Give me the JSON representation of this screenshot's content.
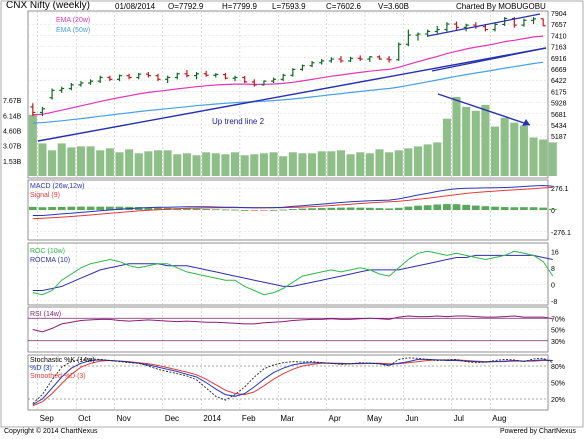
{
  "header": {
    "title": "CNX Nifty (weekly)",
    "date": "01/08/2014",
    "open": "O=7792.9",
    "high": "H=7799.9",
    "low": "L=7593.9",
    "close": "C=7602.6",
    "volume": "V=3.60B",
    "charted_by": "Charted By MOBUGOBU"
  },
  "footer": {
    "copyright": "Copyright © 2014 ChartNexus",
    "powered": "Powered by ChartNexus"
  },
  "colors": {
    "up": "#0f6b1f",
    "down": "#c41a1a",
    "ema20": "#e535b8",
    "ema50": "#4aa0e6",
    "trend": "#2530b0",
    "vol": "#8fbf88",
    "macd": "#2537b8",
    "signal": "#e23a3a",
    "roc": "#2fb84a",
    "rocma": "#2b2fb0",
    "rsi": "#8a1d7a",
    "band": "#7a1d6a"
  },
  "chart_data": [
    {
      "type": "candlestick",
      "name": "price",
      "legend": [
        "EMA (20w)",
        "EMA (50w)"
      ],
      "annotation": "Up trend line 2",
      "y_ticks": [
        "7904",
        "7657",
        "7410",
        "7163",
        "6916",
        "6669",
        "6422",
        "6175",
        "5928",
        "5681",
        "5434",
        "5187"
      ],
      "ylim": [
        5000,
        8000
      ],
      "x_tick_labels": [
        "Sep",
        "Oct",
        "Nov",
        "Dec",
        "2014",
        "Feb",
        "Mar",
        "Apr",
        "May",
        "Jun",
        "Jul",
        "Aug"
      ],
      "candles": [
        {
          "o": 5400,
          "h": 5500,
          "l": 5150,
          "c": 5250
        },
        {
          "o": 5250,
          "h": 5400,
          "l": 5150,
          "c": 5350
        },
        {
          "o": 5650,
          "h": 5900,
          "l": 5600,
          "c": 5850
        },
        {
          "o": 5850,
          "h": 5950,
          "l": 5780,
          "c": 5900
        },
        {
          "o": 5900,
          "h": 6050,
          "l": 5850,
          "c": 6000
        },
        {
          "o": 6000,
          "h": 6100,
          "l": 5950,
          "c": 6050
        },
        {
          "o": 6050,
          "h": 6150,
          "l": 6000,
          "c": 6100
        },
        {
          "o": 6100,
          "h": 6250,
          "l": 6050,
          "c": 6200
        },
        {
          "o": 6200,
          "h": 6250,
          "l": 6100,
          "c": 6150
        },
        {
          "o": 6150,
          "h": 6280,
          "l": 6100,
          "c": 6250
        },
        {
          "o": 6250,
          "h": 6300,
          "l": 6150,
          "c": 6200
        },
        {
          "o": 6200,
          "h": 6320,
          "l": 6150,
          "c": 6290
        },
        {
          "o": 6290,
          "h": 6350,
          "l": 6200,
          "c": 6250
        },
        {
          "o": 6250,
          "h": 6300,
          "l": 6100,
          "c": 6150
        },
        {
          "o": 6150,
          "h": 6250,
          "l": 6050,
          "c": 6200
        },
        {
          "o": 6200,
          "h": 6330,
          "l": 6150,
          "c": 6300
        },
        {
          "o": 6300,
          "h": 6400,
          "l": 6200,
          "c": 6250
        },
        {
          "o": 6250,
          "h": 6350,
          "l": 6150,
          "c": 6300
        },
        {
          "o": 6300,
          "h": 6380,
          "l": 6220,
          "c": 6260
        },
        {
          "o": 6260,
          "h": 6320,
          "l": 6200,
          "c": 6280
        },
        {
          "o": 6280,
          "h": 6320,
          "l": 6150,
          "c": 6180
        },
        {
          "o": 6180,
          "h": 6250,
          "l": 6100,
          "c": 6200
        },
        {
          "o": 6200,
          "h": 6240,
          "l": 6050,
          "c": 6080
        },
        {
          "o": 6080,
          "h": 6150,
          "l": 5950,
          "c": 6000
        },
        {
          "o": 6000,
          "h": 6120,
          "l": 5980,
          "c": 6100
        },
        {
          "o": 6100,
          "h": 6200,
          "l": 6050,
          "c": 6150
        },
        {
          "o": 6150,
          "h": 6300,
          "l": 6100,
          "c": 6260
        },
        {
          "o": 6260,
          "h": 6450,
          "l": 6220,
          "c": 6420
        },
        {
          "o": 6420,
          "h": 6550,
          "l": 6380,
          "c": 6520
        },
        {
          "o": 6520,
          "h": 6650,
          "l": 6480,
          "c": 6600
        },
        {
          "o": 6600,
          "h": 6700,
          "l": 6550,
          "c": 6650
        },
        {
          "o": 6650,
          "h": 6750,
          "l": 6600,
          "c": 6700
        },
        {
          "o": 6700,
          "h": 6780,
          "l": 6600,
          "c": 6650
        },
        {
          "o": 6650,
          "h": 6760,
          "l": 6620,
          "c": 6720
        },
        {
          "o": 6720,
          "h": 6800,
          "l": 6650,
          "c": 6700
        },
        {
          "o": 6700,
          "h": 6780,
          "l": 6620,
          "c": 6760
        },
        {
          "o": 6760,
          "h": 6800,
          "l": 6680,
          "c": 6700
        },
        {
          "o": 6700,
          "h": 6780,
          "l": 6600,
          "c": 6680
        },
        {
          "o": 6680,
          "h": 7150,
          "l": 6650,
          "c": 7100
        },
        {
          "o": 7100,
          "h": 7500,
          "l": 7050,
          "c": 7350
        },
        {
          "o": 7350,
          "h": 7420,
          "l": 7200,
          "c": 7380
        },
        {
          "o": 7380,
          "h": 7500,
          "l": 7300,
          "c": 7450
        },
        {
          "o": 7450,
          "h": 7600,
          "l": 7400,
          "c": 7500
        },
        {
          "o": 7500,
          "h": 7700,
          "l": 7450,
          "c": 7650
        },
        {
          "o": 7650,
          "h": 7720,
          "l": 7480,
          "c": 7560
        },
        {
          "o": 7560,
          "h": 7660,
          "l": 7450,
          "c": 7620
        },
        {
          "o": 7620,
          "h": 7700,
          "l": 7520,
          "c": 7580
        },
        {
          "o": 7580,
          "h": 7650,
          "l": 7450,
          "c": 7500
        },
        {
          "o": 7500,
          "h": 7700,
          "l": 7450,
          "c": 7640
        },
        {
          "o": 7640,
          "h": 7840,
          "l": 7600,
          "c": 7800
        },
        {
          "o": 7800,
          "h": 7840,
          "l": 7550,
          "c": 7620
        },
        {
          "o": 7620,
          "h": 7800,
          "l": 7580,
          "c": 7750
        },
        {
          "o": 7750,
          "h": 7840,
          "l": 7650,
          "c": 7790
        },
        {
          "o": 7792.9,
          "h": 7799.9,
          "l": 7593.9,
          "c": 7602.6
        }
      ]
    },
    {
      "type": "bar",
      "name": "volume",
      "y_ticks": [
        "7.67B",
        "6.14B",
        "4.60B",
        "3.07B",
        "1.53B"
      ],
      "ylim": [
        0,
        8.2
      ],
      "values": [
        6.2,
        3.3,
        2.6,
        3.3,
        2.9,
        3.0,
        3.0,
        2.6,
        2.8,
        2.4,
        2.7,
        2.3,
        2.5,
        2.6,
        2.6,
        2.2,
        2.3,
        2.1,
        2.4,
        2.3,
        2.2,
        2.4,
        2.1,
        2.2,
        2.3,
        2.4,
        2.0,
        2.4,
        2.3,
        2.3,
        2.5,
        2.5,
        2.6,
        2.2,
        2.4,
        2.3,
        2.7,
        2.4,
        2.6,
        2.8,
        3.0,
        3.2,
        3.4,
        5.8,
        8.0,
        7.0,
        6.6,
        7.2,
        5.0,
        5.9,
        5.4,
        5.1,
        3.9,
        3.7,
        3.4
      ]
    },
    {
      "type": "line",
      "name": "macd",
      "legend": [
        "MACD (26w,12w)",
        "Signal (9)"
      ],
      "y_ticks": [
        "276.1",
        "0",
        "-276.1"
      ],
      "ylim": [
        -380,
        380
      ],
      "macd": [
        -70,
        -70,
        -60,
        -50,
        -40,
        -30,
        -20,
        -10,
        0,
        10,
        18,
        25,
        30,
        34,
        36,
        38,
        40,
        40,
        40,
        38,
        36,
        34,
        30,
        28,
        28,
        30,
        35,
        45,
        55,
        65,
        75,
        85,
        95,
        105,
        112,
        118,
        122,
        125,
        140,
        165,
        190,
        210,
        235,
        255,
        268,
        275,
        278,
        280,
        282,
        285,
        290,
        298,
        305,
        310,
        300
      ],
      "signal": [
        -110,
        -105,
        -98,
        -90,
        -82,
        -73,
        -63,
        -52,
        -42,
        -32,
        -22,
        -12,
        -4,
        4,
        10,
        16,
        21,
        24,
        27,
        29,
        30,
        30,
        30,
        29,
        29,
        29,
        30,
        33,
        37,
        43,
        50,
        57,
        65,
        73,
        82,
        90,
        98,
        105,
        112,
        122,
        135,
        150,
        165,
        180,
        195,
        210,
        222,
        232,
        240,
        248,
        255,
        262,
        270,
        280,
        285
      ]
    },
    {
      "type": "line",
      "name": "roc",
      "legend": [
        "ROC (10w)",
        "ROCMA (10)"
      ],
      "y_ticks": [
        "16",
        "8",
        "0",
        "-8"
      ],
      "ylim": [
        -10,
        20
      ],
      "roc": [
        -4,
        -5,
        -3,
        2,
        5,
        8,
        10,
        11,
        12,
        11,
        9,
        8,
        9,
        10,
        10,
        8,
        6,
        5,
        4,
        3,
        2,
        2,
        -1,
        -3,
        -5,
        -4,
        -2,
        1,
        4,
        5,
        6,
        7,
        6,
        7,
        8,
        7,
        5,
        4,
        8,
        12,
        15,
        16,
        15,
        14,
        15,
        14,
        13,
        12,
        13,
        14,
        16,
        15,
        14,
        11,
        4
      ],
      "rocma": [
        -3,
        -3,
        -2,
        -1,
        1,
        3,
        5,
        7,
        8,
        9,
        10,
        10,
        10,
        10,
        9,
        9,
        9,
        8,
        7,
        6,
        5,
        4,
        3,
        2,
        1,
        0,
        -1,
        -1,
        0,
        1,
        2,
        3,
        4,
        5,
        6,
        7,
        7,
        7,
        7,
        8,
        9,
        10,
        11,
        12,
        13,
        13,
        14,
        14,
        14,
        14,
        14,
        14,
        14,
        13,
        12
      ]
    },
    {
      "type": "line",
      "name": "rsi",
      "legend": [
        "RSI (14w)"
      ],
      "y_ticks": [
        "70%",
        "50%",
        "30%"
      ],
      "ylim": [
        10,
        90
      ],
      "rsi": [
        50,
        46,
        52,
        60,
        63,
        66,
        67,
        68,
        68,
        66,
        65,
        66,
        67,
        66,
        65,
        64,
        65,
        64,
        63,
        63,
        62,
        61,
        60,
        60,
        62,
        63,
        64,
        66,
        67,
        68,
        68,
        69,
        68,
        68,
        69,
        70,
        69,
        68,
        72,
        74,
        73,
        73,
        74,
        73,
        74,
        74,
        73,
        72,
        72,
        73,
        74,
        72,
        72,
        72,
        69
      ]
    },
    {
      "type": "line",
      "name": "stochastic",
      "legend": [
        "Stochastic %K (14w)",
        "%D (3)",
        "Smoothed %D (3)"
      ],
      "y_ticks": [
        "80%",
        "50%",
        "20%"
      ],
      "ylim": [
        0,
        100
      ],
      "k": [
        12,
        28,
        55,
        78,
        88,
        92,
        93,
        92,
        90,
        88,
        86,
        85,
        80,
        74,
        70,
        66,
        62,
        55,
        40,
        25,
        18,
        28,
        42,
        60,
        75,
        82,
        86,
        88,
        87,
        88,
        86,
        85,
        83,
        84,
        86,
        85,
        84,
        80,
        92,
        95,
        94,
        92,
        90,
        91,
        92,
        88,
        86,
        87,
        90,
        92,
        91,
        88,
        93,
        94,
        86
      ],
      "d": [
        10,
        20,
        40,
        60,
        76,
        85,
        90,
        91,
        90,
        89,
        87,
        85,
        82,
        78,
        74,
        70,
        65,
        60,
        50,
        38,
        28,
        25,
        30,
        42,
        56,
        68,
        76,
        82,
        85,
        86,
        86,
        85,
        84,
        84,
        85,
        85,
        84,
        82,
        85,
        88,
        92,
        92,
        91,
        90,
        90,
        89,
        88,
        87,
        88,
        89,
        90,
        89,
        90,
        91,
        90
      ],
      "sd": [
        8,
        15,
        30,
        48,
        65,
        78,
        85,
        89,
        90,
        89,
        88,
        86,
        84,
        81,
        77,
        73,
        69,
        64,
        56,
        46,
        36,
        30,
        28,
        33,
        44,
        56,
        66,
        74,
        80,
        83,
        85,
        85,
        85,
        84,
        84,
        85,
        85,
        84,
        84,
        86,
        88,
        90,
        91,
        91,
        91,
        90,
        89,
        88,
        88,
        88,
        89,
        89,
        89,
        90,
        90
      ]
    }
  ]
}
